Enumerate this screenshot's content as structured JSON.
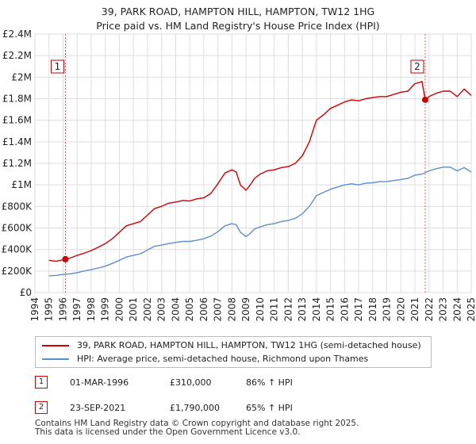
{
  "chart_data": {
    "type": "line",
    "title": "39, PARK ROAD, HAMPTON HILL, HAMPTON, TW12 1HG",
    "subtitle": "Price paid vs. HM Land Registry's House Price Index (HPI)",
    "xlabel": "",
    "ylabel": "",
    "xlim": [
      1995.0,
      2025.0
    ],
    "ylim": [
      0,
      2400000
    ],
    "x_ticks": [
      1994,
      1995,
      1996,
      1997,
      1998,
      1999,
      2000,
      2001,
      2002,
      2003,
      2004,
      2005,
      2006,
      2007,
      2008,
      2009,
      2010,
      2011,
      2012,
      2013,
      2014,
      2015,
      2016,
      2017,
      2018,
      2019,
      2020,
      2021,
      2022,
      2023,
      2024,
      2025
    ],
    "y_ticks": [
      0,
      200000,
      400000,
      600000,
      800000,
      1000000,
      1200000,
      1400000,
      1600000,
      1800000,
      2000000,
      2200000,
      2400000
    ],
    "y_tick_labels": [
      "£0",
      "£200K",
      "£400K",
      "£600K",
      "£800K",
      "£1M",
      "£1.2M",
      "£1.4M",
      "£1.6M",
      "£1.8M",
      "£2M",
      "£2.2M",
      "£2.4M"
    ],
    "grid": true,
    "series": [
      {
        "name": "39, PARK ROAD, HAMPTON HILL, HAMPTON, TW12 1HG (semi-detached house)",
        "color": "#cc0000",
        "x": [
          1995.0,
          1995.5,
          1996.17,
          1996.5,
          1997.0,
          1997.5,
          1998.0,
          1998.5,
          1999.0,
          1999.5,
          2000.0,
          2000.5,
          2001.0,
          2001.5,
          2002.0,
          2002.5,
          2003.0,
          2003.5,
          2004.0,
          2004.5,
          2005.0,
          2005.5,
          2006.0,
          2006.5,
          2007.0,
          2007.5,
          2008.0,
          2008.3,
          2008.6,
          2009.0,
          2009.3,
          2009.6,
          2010.0,
          2010.5,
          2011.0,
          2011.5,
          2012.0,
          2012.5,
          2013.0,
          2013.5,
          2014.0,
          2014.5,
          2015.0,
          2015.5,
          2016.0,
          2016.5,
          2017.0,
          2017.5,
          2018.0,
          2018.5,
          2019.0,
          2019.5,
          2020.0,
          2020.5,
          2021.0,
          2021.3,
          2021.5,
          2021.73,
          2022.0,
          2022.5,
          2023.0,
          2023.5,
          2024.0,
          2024.5,
          2025.0
        ],
        "values": [
          300000,
          290000,
          310000,
          320000,
          345000,
          365000,
          390000,
          420000,
          455000,
          500000,
          560000,
          620000,
          640000,
          660000,
          720000,
          780000,
          800000,
          830000,
          840000,
          855000,
          850000,
          870000,
          880000,
          920000,
          1010000,
          1110000,
          1140000,
          1120000,
          1000000,
          950000,
          1000000,
          1060000,
          1100000,
          1130000,
          1140000,
          1160000,
          1170000,
          1200000,
          1270000,
          1400000,
          1600000,
          1650000,
          1710000,
          1740000,
          1770000,
          1790000,
          1780000,
          1800000,
          1810000,
          1820000,
          1820000,
          1840000,
          1860000,
          1870000,
          1940000,
          1950000,
          1960000,
          1790000,
          1820000,
          1850000,
          1870000,
          1870000,
          1820000,
          1890000,
          1830000
        ]
      },
      {
        "name": "HPI: Average price, semi-detached house, Richmond upon Thames",
        "color": "#5b8fcb",
        "x": [
          1995.0,
          1995.5,
          1996.0,
          1996.5,
          1997.0,
          1997.5,
          1998.0,
          1998.5,
          1999.0,
          1999.5,
          2000.0,
          2000.5,
          2001.0,
          2001.5,
          2002.0,
          2002.5,
          2003.0,
          2003.5,
          2004.0,
          2004.5,
          2005.0,
          2005.5,
          2006.0,
          2006.5,
          2007.0,
          2007.5,
          2008.0,
          2008.3,
          2008.6,
          2009.0,
          2009.3,
          2009.6,
          2010.0,
          2010.5,
          2011.0,
          2011.5,
          2012.0,
          2012.5,
          2013.0,
          2013.5,
          2014.0,
          2014.5,
          2015.0,
          2015.5,
          2016.0,
          2016.5,
          2017.0,
          2017.5,
          2018.0,
          2018.5,
          2019.0,
          2019.5,
          2020.0,
          2020.5,
          2021.0,
          2021.5,
          2022.0,
          2022.5,
          2023.0,
          2023.5,
          2024.0,
          2024.5,
          2025.0
        ],
        "values": [
          155000,
          160000,
          168000,
          174000,
          185000,
          200000,
          213000,
          228000,
          245000,
          270000,
          300000,
          330000,
          345000,
          360000,
          395000,
          430000,
          440000,
          455000,
          465000,
          475000,
          475000,
          485000,
          500000,
          525000,
          565000,
          620000,
          640000,
          630000,
          560000,
          520000,
          550000,
          590000,
          610000,
          630000,
          640000,
          660000,
          670000,
          690000,
          730000,
          800000,
          900000,
          930000,
          960000,
          980000,
          1000000,
          1010000,
          1000000,
          1015000,
          1020000,
          1030000,
          1030000,
          1040000,
          1050000,
          1060000,
          1090000,
          1100000,
          1130000,
          1150000,
          1165000,
          1165000,
          1130000,
          1160000,
          1120000
        ]
      }
    ],
    "annotations": [
      {
        "label": "1",
        "x": 1996.17,
        "value": 310000
      },
      {
        "label": "2",
        "x": 2021.73,
        "value": 1790000
      }
    ]
  },
  "header": {
    "title": "39, PARK ROAD, HAMPTON HILL, HAMPTON, TW12 1HG",
    "subtitle": "Price paid vs. HM Land Registry's House Price Index (HPI)"
  },
  "legend": [
    {
      "label": "39, PARK ROAD, HAMPTON HILL, HAMPTON, TW12 1HG (semi-detached house)",
      "color": "#cc0000"
    },
    {
      "label": "HPI: Average price, semi-detached house, Richmond upon Thames",
      "color": "#5b8fcb"
    }
  ],
  "transactions": [
    {
      "num": "1",
      "date": "01-MAR-1996",
      "price": "£310,000",
      "hpi": "86% ↑ HPI"
    },
    {
      "num": "2",
      "date": "23-SEP-2021",
      "price": "£1,790,000",
      "hpi": "65% ↑ HPI"
    }
  ],
  "footer": {
    "line1": "Contains HM Land Registry data © Crown copyright and database right 2025.",
    "line2": "This data is licensed under the Open Government Licence v3.0."
  }
}
